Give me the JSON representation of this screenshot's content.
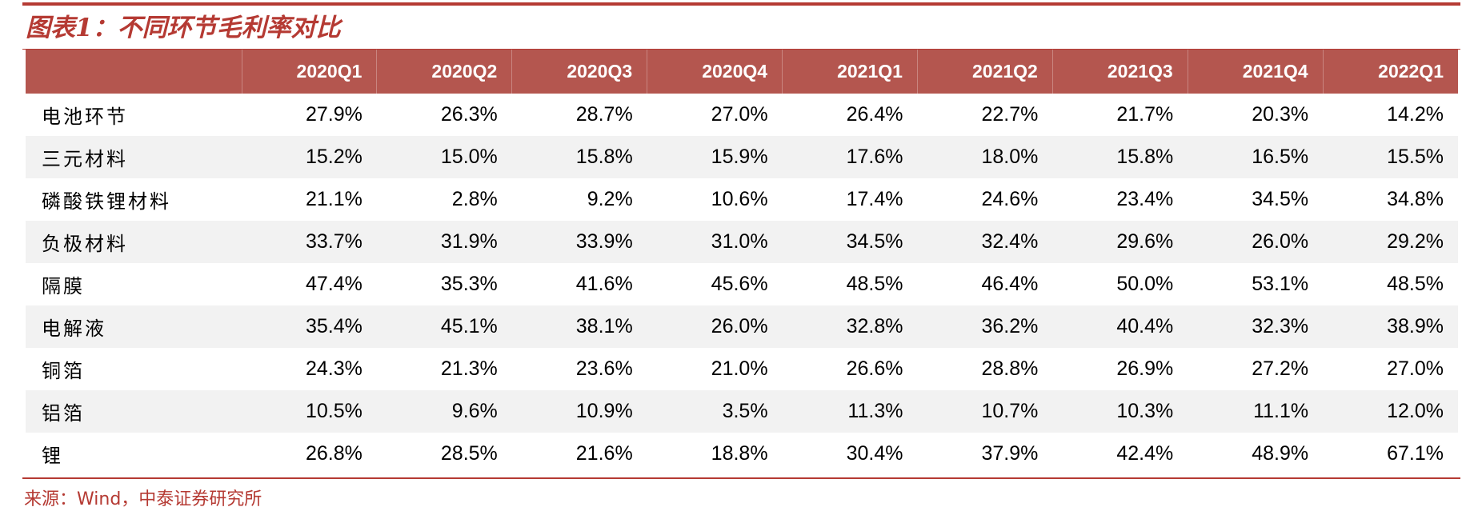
{
  "title": "图表1：不同环节毛利率对比",
  "source": "来源：Wind，中泰证券研究所",
  "colors": {
    "accent": "#b53a33",
    "header_bg": "#b4564f",
    "stripe": "#f2f2f2"
  },
  "table": {
    "columns": [
      "",
      "2020Q1",
      "2020Q2",
      "2020Q3",
      "2020Q4",
      "2021Q1",
      "2021Q2",
      "2021Q3",
      "2021Q4",
      "2022Q1"
    ],
    "rows": [
      {
        "name": "电池环节",
        "values": [
          "27.9%",
          "26.3%",
          "28.7%",
          "27.0%",
          "26.4%",
          "22.7%",
          "21.7%",
          "20.3%",
          "14.2%"
        ]
      },
      {
        "name": "三元材料",
        "values": [
          "15.2%",
          "15.0%",
          "15.8%",
          "15.9%",
          "17.6%",
          "18.0%",
          "15.8%",
          "16.5%",
          "15.5%"
        ]
      },
      {
        "name": "磷酸铁锂材料",
        "values": [
          "21.1%",
          "2.8%",
          "9.2%",
          "10.6%",
          "17.4%",
          "24.6%",
          "23.4%",
          "34.5%",
          "34.8%"
        ]
      },
      {
        "name": "负极材料",
        "values": [
          "33.7%",
          "31.9%",
          "33.9%",
          "31.0%",
          "34.5%",
          "32.4%",
          "29.6%",
          "26.0%",
          "29.2%"
        ]
      },
      {
        "name": "隔膜",
        "values": [
          "47.4%",
          "35.3%",
          "41.6%",
          "45.6%",
          "48.5%",
          "46.4%",
          "50.0%",
          "53.1%",
          "48.5%"
        ]
      },
      {
        "name": "电解液",
        "values": [
          "35.4%",
          "45.1%",
          "38.1%",
          "26.0%",
          "32.8%",
          "36.2%",
          "40.4%",
          "32.3%",
          "38.9%"
        ]
      },
      {
        "name": "铜箔",
        "values": [
          "24.3%",
          "21.3%",
          "23.6%",
          "21.0%",
          "26.6%",
          "28.8%",
          "26.9%",
          "27.2%",
          "27.0%"
        ]
      },
      {
        "name": "铝箔",
        "values": [
          "10.5%",
          "9.6%",
          "10.9%",
          "3.5%",
          "11.3%",
          "10.7%",
          "10.3%",
          "11.1%",
          "12.0%"
        ]
      },
      {
        "name": "锂",
        "values": [
          "26.8%",
          "28.5%",
          "21.6%",
          "18.8%",
          "30.4%",
          "37.9%",
          "42.4%",
          "48.9%",
          "67.1%"
        ]
      }
    ]
  }
}
